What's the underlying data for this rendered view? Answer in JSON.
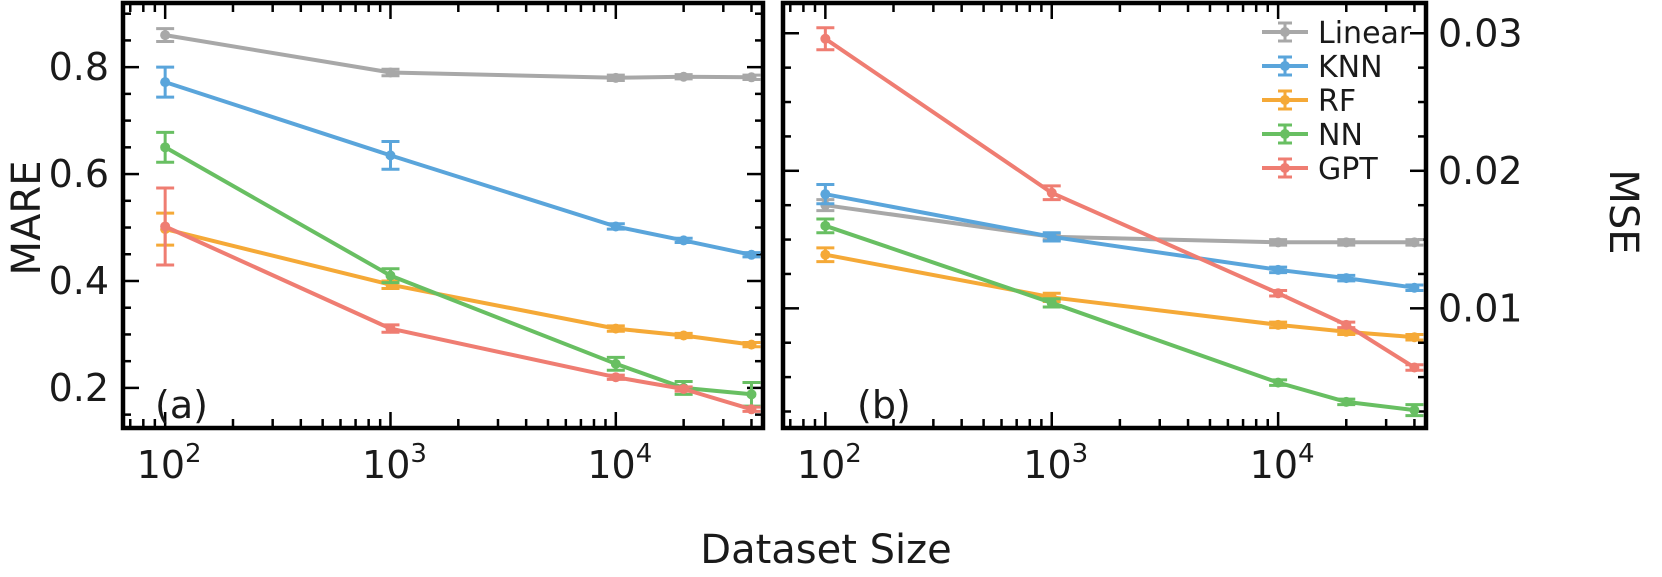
{
  "x_axis": {
    "label": "Dataset Size",
    "ticks": [
      {
        "value": 100,
        "base": "10",
        "exp": "2"
      },
      {
        "value": 1000,
        "base": "10",
        "exp": "3"
      },
      {
        "value": 10000,
        "base": "10",
        "exp": "4"
      }
    ]
  },
  "legend": {
    "placement": "top-right of panel (b)"
  },
  "chart_data": [
    {
      "type": "line",
      "panel_label": "(a)",
      "xscale": "log",
      "xlim": [
        65,
        45000
      ],
      "ylabel": "MARE",
      "ylim": [
        0.125,
        0.92
      ],
      "yticks": [
        "0.2",
        "0.4",
        "0.6",
        "0.8"
      ],
      "x": [
        100,
        1000,
        10000,
        20000,
        40000
      ],
      "series": [
        {
          "name": "Linear",
          "color": "#a8a8a8",
          "values": [
            0.86,
            0.79,
            0.78,
            0.782,
            0.781
          ],
          "errors": [
            0.012,
            0.006,
            0.005,
            0.004,
            0.004
          ]
        },
        {
          "name": "KNN",
          "color": "#5aa5db",
          "values": [
            0.772,
            0.635,
            0.502,
            0.476,
            0.449
          ],
          "errors": [
            0.028,
            0.026,
            0.005,
            0.004,
            0.004
          ]
        },
        {
          "name": "RF",
          "color": "#f5a937",
          "values": [
            0.497,
            0.393,
            0.311,
            0.298,
            0.281
          ],
          "errors": [
            0.03,
            0.007,
            0.005,
            0.004,
            0.004
          ]
        },
        {
          "name": "NN",
          "color": "#68bf62",
          "values": [
            0.65,
            0.41,
            0.245,
            0.2,
            0.188
          ],
          "errors": [
            0.028,
            0.013,
            0.012,
            0.012,
            0.022
          ]
        },
        {
          "name": "GPT",
          "color": "#ef7d72",
          "values": [
            0.502,
            0.311,
            0.22,
            0.198,
            0.16
          ],
          "errors": [
            0.072,
            0.007,
            0.004,
            0.004,
            0.004
          ]
        }
      ]
    },
    {
      "type": "line",
      "panel_label": "(b)",
      "xscale": "log",
      "xlim": [
        65,
        45000
      ],
      "ylabel": "MSE",
      "ylim": [
        0.0013,
        0.0322
      ],
      "yticks": [
        "0.01",
        "0.02",
        "0.03"
      ],
      "x": [
        100,
        1000,
        10000,
        20000,
        40000
      ],
      "series": [
        {
          "name": "Linear",
          "color": "#a8a8a8",
          "values": [
            0.0175,
            0.0152,
            0.0148,
            0.0148,
            0.0148
          ],
          "errors": [
            0.0004,
            0.0002,
            0.0002,
            0.0002,
            0.0002
          ]
        },
        {
          "name": "KNN",
          "color": "#5aa5db",
          "values": [
            0.0183,
            0.0152,
            0.0128,
            0.0122,
            0.0115
          ],
          "errors": [
            0.0007,
            0.0003,
            0.0002,
            0.0002,
            0.0002
          ]
        },
        {
          "name": "RF",
          "color": "#f5a937",
          "values": [
            0.0139,
            0.0108,
            0.0088,
            0.0083,
            0.0079
          ],
          "errors": [
            0.0005,
            0.0003,
            0.0002,
            0.0002,
            0.0002
          ]
        },
        {
          "name": "NN",
          "color": "#68bf62",
          "values": [
            0.016,
            0.0104,
            0.0046,
            0.0032,
            0.0026
          ],
          "errors": [
            0.0005,
            0.0003,
            0.0002,
            0.0002,
            0.0004
          ]
        },
        {
          "name": "GPT",
          "color": "#ef7d72",
          "values": [
            0.0296,
            0.0184,
            0.0111,
            0.0088,
            0.0057
          ],
          "errors": [
            0.0008,
            0.0005,
            0.0002,
            0.0002,
            0.0002
          ]
        }
      ]
    }
  ]
}
